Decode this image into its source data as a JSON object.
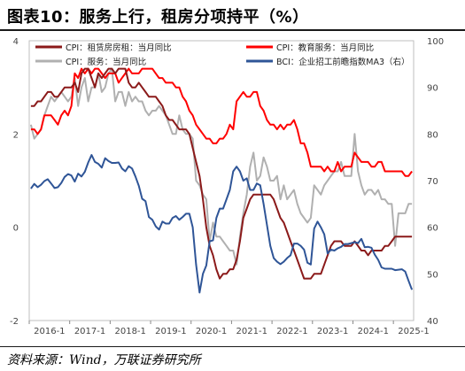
{
  "title": "图表10：服务上行，租房分项持平（%）",
  "source": "资料来源：Wind，万联证券研究所",
  "colors": {
    "rent": "#8b1a1a",
    "education": "#ff0000",
    "services": "#b0b0b0",
    "bci": "#2f5597"
  },
  "chart_data": {
    "type": "line",
    "title": "图表10：服务上行，租房分项持平（%）",
    "x": [
      "2016-1",
      "2016-2",
      "2016-3",
      "2016-4",
      "2016-5",
      "2016-6",
      "2016-7",
      "2016-8",
      "2016-9",
      "2016-10",
      "2016-11",
      "2016-12",
      "2017-1",
      "2017-2",
      "2017-3",
      "2017-4",
      "2017-5",
      "2017-6",
      "2017-7",
      "2017-8",
      "2017-9",
      "2017-10",
      "2017-11",
      "2017-12",
      "2018-1",
      "2018-2",
      "2018-3",
      "2018-4",
      "2018-5",
      "2018-6",
      "2018-7",
      "2018-8",
      "2018-9",
      "2018-10",
      "2018-11",
      "2018-12",
      "2019-1",
      "2019-2",
      "2019-3",
      "2019-4",
      "2019-5",
      "2019-6",
      "2019-7",
      "2019-8",
      "2019-9",
      "2019-10",
      "2019-11",
      "2019-12",
      "2020-1",
      "2020-2",
      "2020-3",
      "2020-4",
      "2020-5",
      "2020-6",
      "2020-7",
      "2020-8",
      "2020-9",
      "2020-10",
      "2020-11",
      "2020-12",
      "2021-1",
      "2021-2",
      "2021-3",
      "2021-4",
      "2021-5",
      "2021-6",
      "2021-7",
      "2021-8",
      "2021-9",
      "2021-10",
      "2021-11",
      "2021-12",
      "2022-1",
      "2022-2",
      "2022-3",
      "2022-4",
      "2022-5",
      "2022-6",
      "2022-7",
      "2022-8",
      "2022-9",
      "2022-10",
      "2022-11",
      "2022-12",
      "2023-1",
      "2023-2",
      "2023-3",
      "2023-4",
      "2023-5",
      "2023-6",
      "2023-7",
      "2023-8",
      "2023-9",
      "2023-10",
      "2023-11",
      "2023-12",
      "2024-1",
      "2024-2",
      "2024-3",
      "2024-4",
      "2024-5",
      "2024-6",
      "2024-7",
      "2024-8",
      "2024-9",
      "2024-10",
      "2024-11",
      "2024-12",
      "2025-1",
      "2025-2",
      "2025-3",
      "2025-4",
      "2025-5",
      "2025-6"
    ],
    "x_tick_labels": [
      "2016-1",
      "2017-1",
      "2018-1",
      "2019-1",
      "2020-1",
      "2021-1",
      "2022-1",
      "2023-1",
      "2024-1",
      "2025-1"
    ],
    "y_left": {
      "ticks": [
        -2,
        0,
        2,
        4
      ],
      "range": [
        -2,
        4
      ]
    },
    "y_right": {
      "ticks": [
        40,
        50,
        60,
        70,
        80,
        90,
        100
      ],
      "range": [
        40,
        100
      ]
    },
    "legend_placement": "top",
    "series": [
      {
        "name": "CPI：租赁房房租：当月同比",
        "axis": "left",
        "color": "#8b1a1a",
        "values": [
          2.6,
          2.6,
          2.7,
          2.7,
          2.8,
          2.9,
          2.9,
          2.8,
          2.8,
          2.9,
          3.0,
          3.0,
          3.0,
          3.1,
          2.9,
          3.3,
          3.4,
          3.4,
          3.2,
          3.0,
          3.3,
          3.2,
          3.3,
          3.4,
          3.4,
          3.3,
          3.4,
          3.4,
          3.4,
          3.1,
          3.0,
          3.0,
          3.1,
          3.0,
          2.9,
          2.8,
          2.8,
          2.8,
          2.7,
          2.6,
          2.4,
          2.3,
          2.3,
          2.2,
          2.1,
          2.1,
          2.1,
          2.0,
          1.7,
          1.4,
          1.1,
          0.6,
          0.0,
          -0.4,
          -0.6,
          -0.9,
          -1.1,
          -1.0,
          -1.0,
          -0.9,
          -0.9,
          -0.7,
          -0.3,
          0.2,
          0.4,
          0.6,
          0.7,
          0.7,
          0.7,
          0.7,
          0.7,
          0.7,
          0.6,
          0.4,
          0.2,
          0.1,
          -0.1,
          -0.3,
          -0.5,
          -0.7,
          -0.9,
          -1.1,
          -1.1,
          -1.1,
          -1.0,
          -1.0,
          -1.0,
          -0.8,
          -0.6,
          -0.4,
          -0.3,
          -0.3,
          -0.3,
          -0.4,
          -0.4,
          -0.4,
          -0.3,
          -0.4,
          -0.5,
          -0.5,
          -0.6,
          -0.5,
          -0.5,
          -0.5,
          -0.5,
          -0.4,
          -0.4,
          -0.3,
          -0.2,
          -0.2,
          -0.2,
          -0.2,
          -0.2,
          -0.2
        ]
      },
      {
        "name": "CPI：教育服务：当月同比",
        "axis": "left",
        "color": "#ff0000",
        "values": [
          2.1,
          2.1,
          2.0,
          2.1,
          2.4,
          2.4,
          2.4,
          2.3,
          2.2,
          2.4,
          2.5,
          2.4,
          2.6,
          3.3,
          3.2,
          3.4,
          3.3,
          3.4,
          3.3,
          3.4,
          3.4,
          3.3,
          3.2,
          3.3,
          3.3,
          3.3,
          3.1,
          3.2,
          3.3,
          3.4,
          3.3,
          3.3,
          3.3,
          3.4,
          3.4,
          3.4,
          3.4,
          3.3,
          3.2,
          3.2,
          3.1,
          3.1,
          3.1,
          3.0,
          3.0,
          2.8,
          2.7,
          2.5,
          2.4,
          2.2,
          2.1,
          2.0,
          1.9,
          1.9,
          1.8,
          1.8,
          1.9,
          1.9,
          2.0,
          2.2,
          2.1,
          2.7,
          2.8,
          2.9,
          2.8,
          2.8,
          2.9,
          2.9,
          2.6,
          2.5,
          2.3,
          2.2,
          2.2,
          2.1,
          2.2,
          2.1,
          2.2,
          2.2,
          2.3,
          2.1,
          1.8,
          1.8,
          1.6,
          1.3,
          1.3,
          1.3,
          1.3,
          1.2,
          1.3,
          1.2,
          1.2,
          1.4,
          1.2,
          1.3,
          1.3,
          1.3,
          1.6,
          1.5,
          1.4,
          1.4,
          1.4,
          1.3,
          1.3,
          1.4,
          1.4,
          1.2,
          1.2,
          1.2,
          1.2,
          1.2,
          1.2,
          1.1,
          1.1,
          1.2
        ]
      },
      {
        "name": "CPI：服务：当月同比",
        "axis": "left",
        "color": "#b0b0b0",
        "values": [
          2.2,
          1.9,
          2.0,
          2.1,
          2.4,
          2.6,
          2.8,
          2.7,
          2.8,
          2.9,
          2.8,
          2.7,
          2.8,
          3.2,
          2.6,
          3.0,
          3.2,
          2.7,
          3.0,
          3.0,
          3.3,
          2.9,
          3.0,
          3.3,
          3.4,
          2.7,
          2.9,
          2.9,
          2.6,
          2.9,
          2.7,
          2.8,
          2.7,
          2.7,
          2.5,
          2.4,
          2.5,
          2.5,
          2.6,
          2.5,
          2.4,
          2.2,
          2.0,
          2.0,
          2.4,
          2.1,
          2.0,
          2.0,
          1.9,
          1.0,
          0.9,
          0.7,
          0.6,
          -0.3,
          0.1,
          -0.2,
          -0.2,
          -0.3,
          -0.4,
          -0.5,
          -0.5,
          -0.8,
          -0.2,
          0.3,
          0.7,
          1.3,
          1.6,
          1.0,
          1.1,
          1.5,
          1.3,
          1.0,
          1.0,
          1.1,
          0.6,
          0.9,
          0.6,
          0.7,
          0.8,
          0.5,
          0.3,
          0.2,
          0.1,
          0.2,
          0.9,
          0.8,
          0.7,
          0.9,
          1.0,
          1.1,
          1.2,
          1.2,
          1.4,
          1.1,
          1.1,
          1.1,
          2.0,
          1.2,
          0.9,
          0.7,
          0.8,
          0.8,
          0.7,
          0.8,
          0.6,
          0.6,
          0.5,
          0.5,
          -0.4,
          0.3,
          0.3,
          0.3,
          0.5,
          0.5
        ]
      },
      {
        "name": "BCI：企业招工前瞻指数MA3（右）",
        "axis": "right",
        "color": "#2f5597",
        "values": [
          68.3,
          69.3,
          68.6,
          69.1,
          69.9,
          70.3,
          69.4,
          68.4,
          68.6,
          69.5,
          70.8,
          71.4,
          71.1,
          69.8,
          71.5,
          70.9,
          71.9,
          73.9,
          75.5,
          74.0,
          73.6,
          72.8,
          74.8,
          74.2,
          73.8,
          73.8,
          73.9,
          72.6,
          72.0,
          73.1,
          72.6,
          70.9,
          68.9,
          66.1,
          65.6,
          62.2,
          61.6,
          60.2,
          59.5,
          61.2,
          60.8,
          60.8,
          62.0,
          62.4,
          61.6,
          62.2,
          62.9,
          62.9,
          60.0,
          52.0,
          46.0,
          50.0,
          51.8,
          57.0,
          57.2,
          62.0,
          64.0,
          64.0,
          66.0,
          68.0,
          72.0,
          73.0,
          72.0,
          70.0,
          70.5,
          68.0,
          68.0,
          69.4,
          69.0,
          65.0,
          60.5,
          56.0,
          53.4,
          52.6,
          52.1,
          52.6,
          53.4,
          54.0,
          56.5,
          56.5,
          56.0,
          55.2,
          52.4,
          52.0,
          59.7,
          61.2,
          60.0,
          58.5,
          54.4,
          55.2,
          55.0,
          55.5,
          55.8,
          56.4,
          56.4,
          56.6,
          56.8,
          56.6,
          57.5,
          55.7,
          55.8,
          55.6,
          54.1,
          53.0,
          51.4,
          51.1,
          51.1,
          51.1,
          50.8,
          50.9,
          51.0,
          50.5,
          48.5,
          46.6
        ]
      }
    ]
  }
}
